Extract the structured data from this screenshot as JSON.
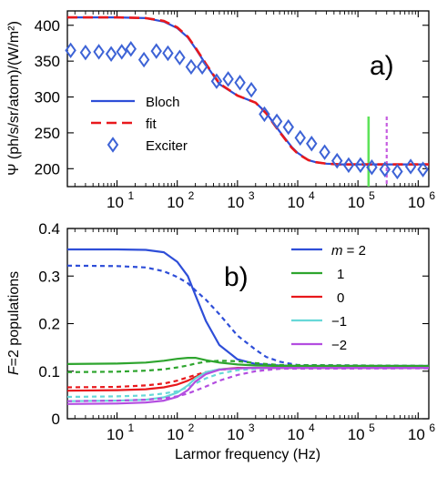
{
  "chart_data": [
    {
      "id": "a",
      "type": "line",
      "panel_label": "a)",
      "ylabel": "Ψ  (ph/s/sr/atom)/(W/m²)",
      "xscale": "log",
      "xlim": [
        1.5,
        1500000.0
      ],
      "ylim": [
        175,
        420
      ],
      "yticks": [
        200,
        250,
        300,
        350,
        400
      ],
      "xticks": [
        {
          "value": 10,
          "base": "10",
          "exp": "1"
        },
        {
          "value": 100,
          "base": "10",
          "exp": "2"
        },
        {
          "value": 1000,
          "base": "10",
          "exp": "3"
        },
        {
          "value": 10000,
          "base": "10",
          "exp": "4"
        },
        {
          "value": 100000,
          "base": "10",
          "exp": "5"
        },
        {
          "value": 1000000,
          "base": "10",
          "exp": "6"
        }
      ],
      "legend": {
        "placement": "center-left"
      },
      "series": [
        {
          "name": "Bloch",
          "kind": "line",
          "color": "#2e4ed8",
          "dash": "solid",
          "x": [
            1.5,
            10,
            30,
            60,
            100,
            150,
            200,
            300,
            500,
            1000,
            2000,
            3000,
            5000,
            8000,
            10000,
            15000,
            20000,
            30000,
            50000,
            100000,
            1500000
          ],
          "y": [
            411,
            411,
            410,
            405,
            396,
            383,
            368,
            345,
            318,
            302,
            292,
            278,
            252,
            230,
            222,
            212,
            209,
            207,
            206,
            206,
            206
          ]
        },
        {
          "name": "fit",
          "kind": "line",
          "color": "#e8181c",
          "dash": "dashed",
          "x": [
            1.5,
            10,
            30,
            60,
            100,
            150,
            200,
            300,
            500,
            1000,
            2000,
            3000,
            5000,
            8000,
            10000,
            15000,
            20000,
            30000,
            50000,
            100000,
            1500000
          ],
          "y": [
            411,
            411,
            410,
            406,
            397,
            384,
            369,
            346,
            319,
            302,
            292,
            277,
            251,
            229,
            221,
            212,
            209,
            207,
            206,
            206,
            206
          ]
        },
        {
          "name": "Exciter",
          "kind": "markers",
          "marker": "diamond",
          "color": "#3d63d6",
          "x": [
            1.7,
            3,
            5,
            8,
            12,
            17,
            28,
            45,
            70,
            110,
            170,
            260,
            450,
            700,
            1100,
            1700,
            2800,
            4500,
            7000,
            11000,
            17000,
            28000,
            45000,
            70000,
            110000,
            170000,
            280000,
            450000,
            750000,
            1200000
          ],
          "y": [
            365,
            362,
            363,
            360,
            363,
            367,
            352,
            364,
            361,
            355,
            342,
            342,
            322,
            325,
            320,
            310,
            276,
            266,
            258,
            243,
            235,
            223,
            211,
            205,
            205,
            202,
            199,
            196,
            203,
            199
          ]
        }
      ],
      "vlines": [
        {
          "x": 150000,
          "color": "#5ee35a",
          "dash": "solid"
        },
        {
          "x": 300000,
          "color": "#c65de0",
          "dash": "dotted"
        }
      ]
    },
    {
      "id": "b",
      "type": "line",
      "panel_label": "b)",
      "xlabel": "Larmor frequency (Hz)",
      "ylabel_pre": "F",
      "ylabel_post": "=2 populations",
      "xscale": "log",
      "xlim": [
        1.5,
        1500000.0
      ],
      "ylim": [
        0,
        0.4
      ],
      "yticks": [
        0,
        0.1,
        0.2,
        0.3,
        0.4
      ],
      "ytick_labels": [
        "0",
        "0.1",
        "0.2",
        "0.3",
        "0.4"
      ],
      "xticks": [
        {
          "value": 10,
          "base": "10",
          "exp": "1"
        },
        {
          "value": 100,
          "base": "10",
          "exp": "2"
        },
        {
          "value": 1000,
          "base": "10",
          "exp": "3"
        },
        {
          "value": 10000,
          "base": "10",
          "exp": "4"
        },
        {
          "value": 100000,
          "base": "10",
          "exp": "5"
        },
        {
          "value": 1000000,
          "base": "10",
          "exp": "6"
        }
      ],
      "legend": {
        "placement": "top-right",
        "first_prefix": "m",
        "first_suffix": " = 2"
      },
      "series": [
        {
          "name": "2",
          "color": "#2e4ed8",
          "solid": {
            "x": [
              1.5,
              10,
              30,
              60,
              100,
              150,
              200,
              300,
              500,
              1000,
              2000,
              5000,
              10000,
              1500000
            ],
            "y": [
              0.356,
              0.356,
              0.355,
              0.35,
              0.33,
              0.3,
              0.26,
              0.205,
              0.155,
              0.125,
              0.115,
              0.112,
              0.111,
              0.111
            ]
          },
          "dashed": {
            "x": [
              1.5,
              10,
              30,
              60,
              100,
              150,
              200,
              300,
              500,
              1000,
              2000,
              3000,
              5000,
              10000,
              1500000
            ],
            "y": [
              0.322,
              0.321,
              0.318,
              0.31,
              0.298,
              0.285,
              0.27,
              0.25,
              0.22,
              0.175,
              0.145,
              0.13,
              0.12,
              0.113,
              0.111
            ]
          }
        },
        {
          "name": "1",
          "color": "#2ea52e",
          "solid": {
            "x": [
              1.5,
              10,
              30,
              60,
              100,
              150,
              200,
              300,
              500,
              1000,
              2000,
              5000,
              1500000
            ],
            "y": [
              0.115,
              0.116,
              0.118,
              0.122,
              0.126,
              0.128,
              0.128,
              0.123,
              0.118,
              0.114,
              0.112,
              0.111,
              0.111
            ]
          },
          "dashed": {
            "x": [
              1.5,
              10,
              30,
              60,
              100,
              150,
              200,
              300,
              500,
              1000,
              2000,
              5000,
              1500000
            ],
            "y": [
              0.098,
              0.099,
              0.101,
              0.104,
              0.108,
              0.112,
              0.116,
              0.12,
              0.122,
              0.121,
              0.117,
              0.113,
              0.111
            ]
          }
        },
        {
          "name": "0",
          "color": "#e8181c",
          "solid": {
            "x": [
              1.5,
              10,
              30,
              60,
              100,
              150,
              200,
              300,
              500,
              1000,
              2000,
              5000,
              1500000
            ],
            "y": [
              0.059,
              0.06,
              0.062,
              0.066,
              0.072,
              0.08,
              0.088,
              0.097,
              0.104,
              0.107,
              0.107,
              0.107,
              0.107
            ]
          },
          "dashed": {
            "x": [
              1.5,
              10,
              30,
              60,
              100,
              150,
              200,
              300,
              500,
              1000,
              2000,
              5000,
              1500000
            ],
            "y": [
              0.066,
              0.067,
              0.07,
              0.074,
              0.08,
              0.087,
              0.092,
              0.098,
              0.103,
              0.106,
              0.107,
              0.107,
              0.107
            ]
          }
        },
        {
          "name": "−1",
          "color": "#67d8d8",
          "solid": {
            "x": [
              1.5,
              10,
              30,
              60,
              100,
              150,
              200,
              300,
              500,
              1000,
              2000,
              5000,
              1500000
            ],
            "y": [
              0.037,
              0.038,
              0.04,
              0.045,
              0.055,
              0.07,
              0.085,
              0.098,
              0.104,
              0.106,
              0.107,
              0.107,
              0.107
            ]
          },
          "dashed": {
            "x": [
              1.5,
              10,
              30,
              60,
              100,
              150,
              200,
              300,
              500,
              1000,
              2000,
              5000,
              1500000
            ],
            "y": [
              0.046,
              0.047,
              0.049,
              0.053,
              0.058,
              0.066,
              0.074,
              0.085,
              0.095,
              0.102,
              0.105,
              0.107,
              0.107
            ]
          }
        },
        {
          "name": "−2",
          "color": "#b34de0",
          "solid": {
            "x": [
              1.5,
              10,
              30,
              60,
              100,
              150,
              200,
              300,
              500,
              1000,
              2000,
              5000,
              1500000
            ],
            "y": [
              0.031,
              0.032,
              0.034,
              0.038,
              0.046,
              0.06,
              0.078,
              0.094,
              0.103,
              0.106,
              0.107,
              0.107,
              0.107
            ]
          },
          "dashed": {
            "x": [
              1.5,
              10,
              30,
              60,
              100,
              150,
              200,
              300,
              500,
              1000,
              2000,
              5000,
              1500000
            ],
            "y": [
              0.037,
              0.038,
              0.04,
              0.043,
              0.047,
              0.053,
              0.059,
              0.068,
              0.08,
              0.092,
              0.1,
              0.105,
              0.106
            ]
          }
        }
      ]
    }
  ]
}
